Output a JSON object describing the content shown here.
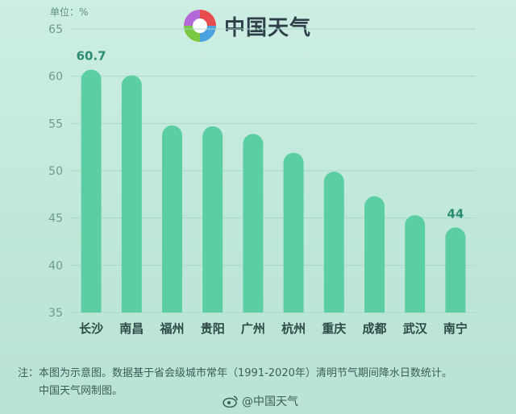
{
  "header": {
    "unit": "单位：%",
    "logo_text": "中国天气"
  },
  "chart_data": {
    "type": "bar",
    "categories": [
      "长沙",
      "南昌",
      "福州",
      "贵阳",
      "广州",
      "杭州",
      "重庆",
      "成都",
      "武汉",
      "南宁"
    ],
    "values": [
      60.7,
      60.1,
      54.8,
      54.7,
      53.9,
      51.9,
      49.9,
      47.3,
      45.3,
      44
    ],
    "data_labels": [
      {
        "index": 0,
        "text": "60.7"
      },
      {
        "index": 9,
        "text": "44"
      }
    ],
    "yticks": [
      "35",
      "40",
      "45",
      "50",
      "55",
      "60",
      "65"
    ],
    "ylim": [
      35,
      65
    ],
    "grid": true,
    "bar_color": "#5ccfa2",
    "label_color": "#2a8c72"
  },
  "footer": {
    "note_line1": "注：本图为示意图。数据基于省会级城市常年（1991-2020年）清明节气期间降水日数统计。",
    "note_line2": "中国天气网制图。",
    "weibo": "@中国天气"
  }
}
